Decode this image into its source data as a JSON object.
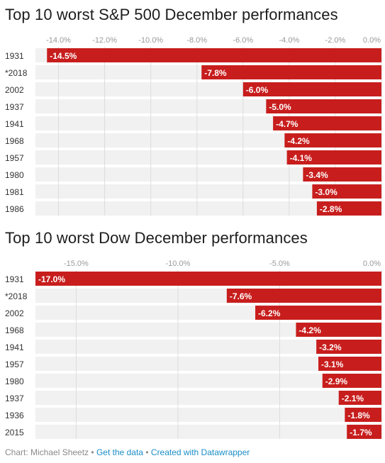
{
  "chart_data": [
    {
      "type": "bar",
      "orientation": "horizontal",
      "title": "Top 10 worst S&P 500 December performances",
      "xlabel": "",
      "ylabel": "",
      "xlim": [
        -15,
        0
      ],
      "x_ticks": [
        -14,
        -12,
        -10,
        -8,
        -6,
        -4,
        -2,
        0
      ],
      "x_tick_labels": [
        "-14.0%",
        "-12.0%",
        "-10.0%",
        "-8.0%",
        "-6.0%",
        "-4.0%",
        "-2.0%",
        "0.0%"
      ],
      "grid": true,
      "bar_color": "#c71e1d",
      "categories": [
        "1931",
        "*2018",
        "2002",
        "1937",
        "1941",
        "1968",
        "1957",
        "1980",
        "1981",
        "1986"
      ],
      "values": [
        -14.5,
        -7.8,
        -6.0,
        -5.0,
        -4.7,
        -4.2,
        -4.1,
        -3.4,
        -3.0,
        -2.8
      ],
      "value_labels": [
        "-14.5%",
        "-7.8%",
        "-6.0%",
        "-5.0%",
        "-4.7%",
        "-4.2%",
        "-4.1%",
        "-3.4%",
        "-3.0%",
        "-2.8%"
      ]
    },
    {
      "type": "bar",
      "orientation": "horizontal",
      "title": "Top 10 worst Dow December performances",
      "xlabel": "",
      "ylabel": "",
      "xlim": [
        -17,
        0
      ],
      "x_ticks": [
        -15,
        -10,
        -5,
        0
      ],
      "x_tick_labels": [
        "-15.0%",
        "-10.0%",
        "-5.0%",
        "0.0%"
      ],
      "grid": true,
      "bar_color": "#c71e1d",
      "categories": [
        "1931",
        "*2018",
        "2002",
        "1968",
        "1941",
        "1957",
        "1980",
        "1937",
        "1936",
        "2015"
      ],
      "values": [
        -17.0,
        -7.6,
        -6.2,
        -4.2,
        -3.2,
        -3.1,
        -2.9,
        -2.1,
        -1.8,
        -1.7
      ],
      "value_labels": [
        "-17.0%",
        "-7.6%",
        "-6.2%",
        "-4.2%",
        "-3.2%",
        "-3.1%",
        "-2.9%",
        "-2.1%",
        "-1.8%",
        "-1.7%"
      ]
    }
  ],
  "footer": {
    "credit": "Chart: Michael Sheetz",
    "separator": " • ",
    "get_data": "Get the data",
    "created_with": "Created with Datawrapper"
  }
}
